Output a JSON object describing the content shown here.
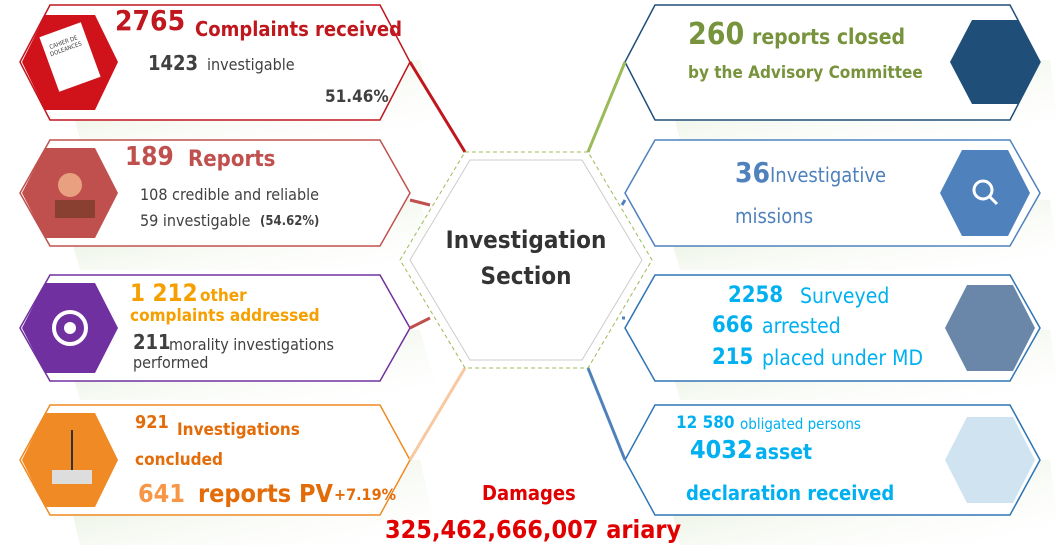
{
  "center": {
    "title": "Investigation Section"
  },
  "left": [
    {
      "number": "2765",
      "label": "Complaints received",
      "sub_number": "1423",
      "sub_label": "investigable",
      "rate": "51.46%",
      "icon_text": "CAHIER DE DOLEANCES"
    },
    {
      "number": "189",
      "label": "Reports",
      "line1": "108 credible and reliable",
      "line2": "59 investigable",
      "rate": "(54.62%)"
    },
    {
      "number": "1 212",
      "label": "other",
      "label2": "complaints addressed",
      "sub_number": "211",
      "sub_label": "morality investigations performed"
    },
    {
      "number": "921",
      "label": "Investigations concluded",
      "sub_number": "641",
      "sub_label": "reports PV",
      "rate": "+7.19%"
    }
  ],
  "right": [
    {
      "number": "260",
      "label": "reports closed",
      "label2": "by the Advisory Committee"
    },
    {
      "number": "36",
      "label": "Investigative",
      "label2": "missions"
    },
    {
      "rows": [
        {
          "number": "2258",
          "label": "Surveyed"
        },
        {
          "number": "666",
          "label": "arrested"
        },
        {
          "number": "215",
          "label": "placed under MD"
        }
      ]
    },
    {
      "number": "12 580",
      "label": "obligated persons",
      "sub_number": "4032",
      "sub_label": "asset",
      "label2": "declaration received"
    }
  ],
  "damages": {
    "label": "Damages",
    "amount": "325,462,666,007 ariary"
  }
}
